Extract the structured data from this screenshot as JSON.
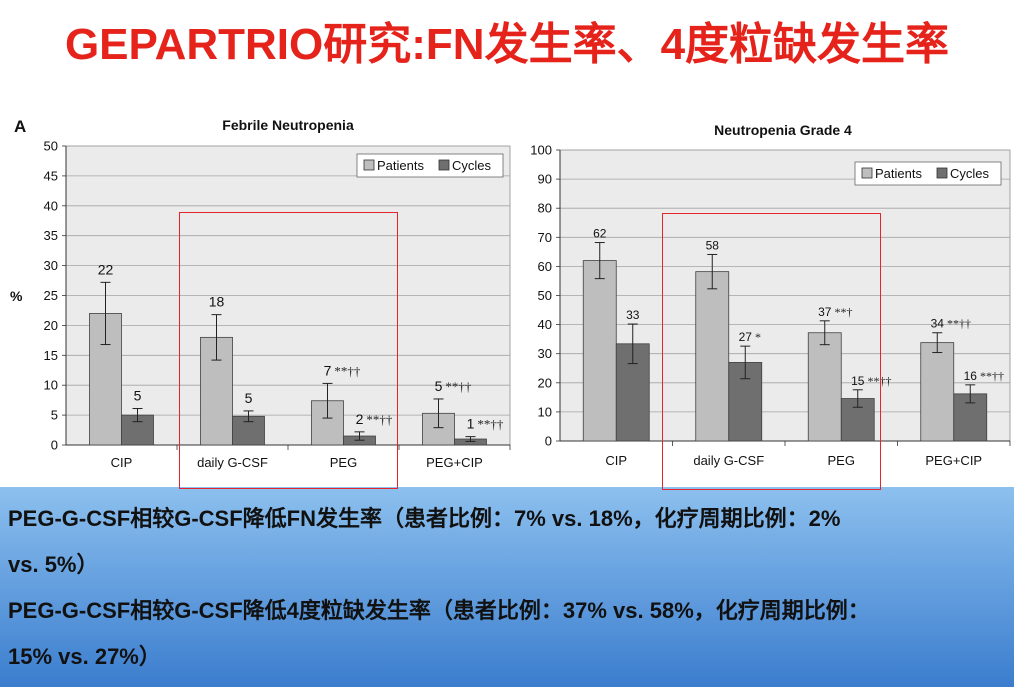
{
  "slide": {
    "title": "GEPARTRIO研究:FN发生率、4度粒缺发生率",
    "summary_lines": [
      "PEG-G-CSF相较G-CSF降低FN发生率（患者比例：7% vs. 18%，化疗周期比例：2%",
      "vs. 5%）",
      "PEG-G-CSF相较G-CSF降低4度粒缺发生率（患者比例：37% vs. 58%，化疗周期比例：",
      "15% vs. 27%）"
    ],
    "colors": {
      "title": "#e5231b",
      "highlight": "#e3262b",
      "summary_top": "#8cc0ee",
      "summary_bottom": "#3b7dce",
      "summary_text": "#111111"
    }
  },
  "chart_data": [
    {
      "type": "bar",
      "panel_label": "A",
      "title": "Febrile Neutropenia",
      "ylabel": "%",
      "ylim": [
        0,
        50
      ],
      "yticks": [
        0,
        5,
        10,
        15,
        20,
        25,
        30,
        35,
        40,
        45,
        50
      ],
      "categories": [
        "CIP",
        "daily G-CSF",
        "PEG",
        "PEG+CIP"
      ],
      "grid": true,
      "legend_position": "top-right",
      "series": [
        {
          "name": "Patients",
          "color": "#bebebe",
          "values": [
            22,
            18,
            7.4,
            5.3
          ],
          "error": [
            5.2,
            3.8,
            2.9,
            2.4
          ],
          "labels": [
            "22",
            "18",
            "7",
            "5"
          ],
          "marks": [
            null,
            null,
            "**††",
            "**††"
          ]
        },
        {
          "name": "Cycles",
          "color": "#6f6f6f",
          "values": [
            5.0,
            4.8,
            1.5,
            1.0
          ],
          "error": [
            1.1,
            0.9,
            0.7,
            0.4
          ],
          "labels": [
            "5",
            "5",
            "2",
            "1"
          ],
          "marks": [
            null,
            null,
            "**††",
            "**††"
          ]
        }
      ]
    },
    {
      "type": "bar",
      "title": "Neutropenia Grade 4",
      "ylim": [
        0,
        100
      ],
      "yticks": [
        0,
        10,
        20,
        30,
        40,
        50,
        60,
        70,
        80,
        90,
        100
      ],
      "categories": [
        "CIP",
        "daily G-CSF",
        "PEG",
        "PEG+CIP"
      ],
      "grid": true,
      "legend_position": "top-right",
      "series": [
        {
          "name": "Patients",
          "color": "#bebebe",
          "values": [
            62,
            58.2,
            37.2,
            33.8
          ],
          "error": [
            6.2,
            5.9,
            4.1,
            3.4
          ],
          "labels": [
            "62",
            "58",
            "37",
            "34"
          ],
          "marks": [
            null,
            null,
            "**†",
            "**††"
          ]
        },
        {
          "name": "Cycles",
          "color": "#6f6f6f",
          "values": [
            33.4,
            27.0,
            14.6,
            16.2
          ],
          "error": [
            6.8,
            5.6,
            3.0,
            3.1
          ],
          "labels": [
            "33",
            "27",
            "15",
            "16"
          ],
          "marks": [
            null,
            "*",
            "**††",
            "**††"
          ]
        }
      ]
    }
  ]
}
